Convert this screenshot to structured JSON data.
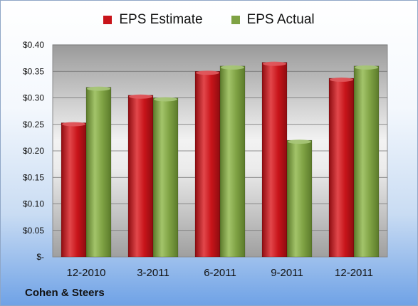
{
  "company": "Cohen & Steers",
  "colors": {
    "estimate": "#c8141a",
    "actual": "#7fa244"
  },
  "chart_data": {
    "type": "bar",
    "categories": [
      "12-2010",
      "3-2011",
      "6-2011",
      "9-2011",
      "12-2011"
    ],
    "series": [
      {
        "name": "EPS Estimate",
        "values": [
          0.253,
          0.305,
          0.35,
          0.367,
          0.337
        ]
      },
      {
        "name": "EPS Actual",
        "values": [
          0.32,
          0.3,
          0.36,
          0.22,
          0.36
        ]
      }
    ],
    "yticks": [
      "$-",
      "$0.05",
      "$0.10",
      "$0.15",
      "$0.20",
      "$0.25",
      "$0.30",
      "$0.35",
      "$0.40"
    ],
    "ylim": [
      0,
      0.4
    ],
    "grid": true,
    "legend": "top-center"
  }
}
